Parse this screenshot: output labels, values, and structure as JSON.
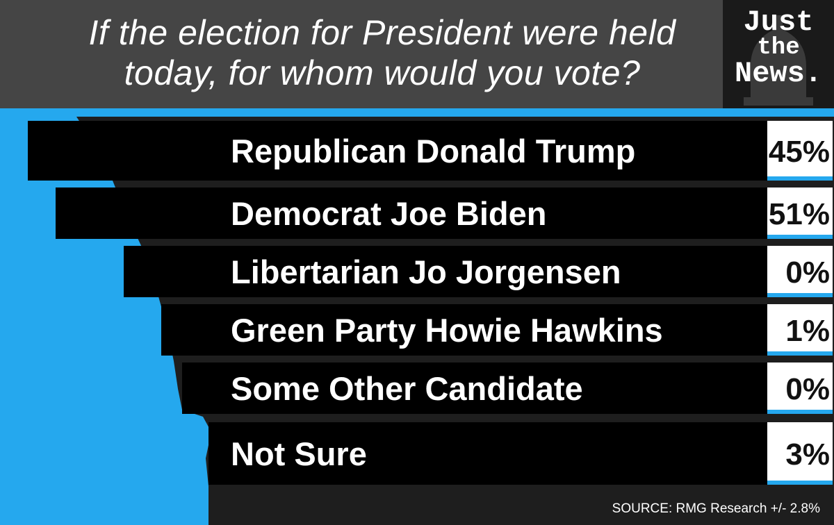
{
  "header": {
    "title_line1": "If the election for President were held",
    "title_line2": "today, for whom would you vote?"
  },
  "logo": {
    "line1": "Just",
    "line2": "the",
    "line3": "News."
  },
  "colors": {
    "accent_blue": "#25a8ee",
    "header_gray": "#454545",
    "row_black": "#000000",
    "row_gap_gray": "#3a3a3a",
    "pct_box": "#ffffff"
  },
  "chart_data": {
    "type": "table",
    "categories": [
      "Republican Donald Trump",
      "Democrat Joe Biden",
      "Libertarian Jo Jorgensen",
      "Green Party Howie Hawkins",
      "Some Other Candidate",
      "Not Sure"
    ],
    "values": [
      45,
      51,
      0,
      1,
      0,
      3
    ],
    "value_labels": [
      "45%",
      "51%",
      "0%",
      "1%",
      "0%",
      "3%"
    ],
    "title": "If the election for President were held today, for whom would you vote?"
  },
  "source": "SOURCE: RMG Research +/- 2.8%"
}
